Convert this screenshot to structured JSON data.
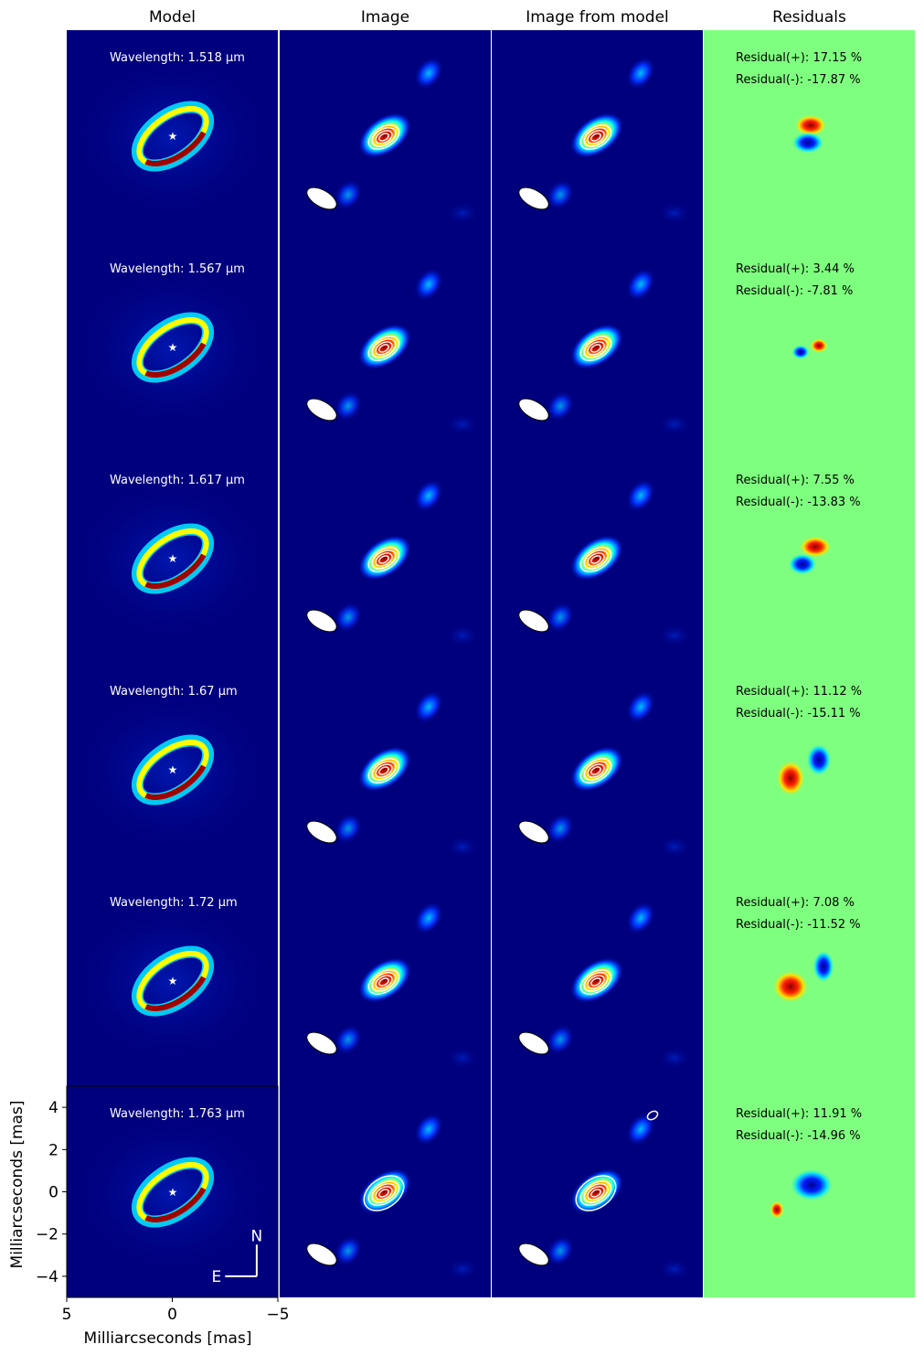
{
  "chart_data": {
    "type": "heatmap",
    "column_titles": [
      "Model",
      "Image",
      "Image from model",
      "Residuals"
    ],
    "xlabel": "Milliarcseconds [mas]",
    "ylabel": "Milliarcseconds [mas]",
    "xlim": [
      5,
      -5
    ],
    "ylim": [
      -5,
      5
    ],
    "xticks": [
      5,
      0,
      -5
    ],
    "xtick_labels": [
      "5",
      "0",
      "−5"
    ],
    "yticks": [
      4,
      2,
      0,
      -2,
      -4
    ],
    "ytick_labels": [
      "4",
      "2",
      "0",
      "−2",
      "−4"
    ],
    "compass": {
      "north": "N",
      "east": "E"
    },
    "colormap": "jet",
    "colors": {
      "background_low": "#00007f",
      "residual_zero": "#7fff7f",
      "contour": "#ffffff"
    },
    "rows": [
      {
        "wavelength": "Wavelength: 1.518 μm",
        "residual_pos": "Residual(+): 17.15 %",
        "residual_neg": "Residual(-): -17.87 %"
      },
      {
        "wavelength": "Wavelength: 1.567 μm",
        "residual_pos": "Residual(+): 3.44 %",
        "residual_neg": "Residual(-): -7.81 %"
      },
      {
        "wavelength": "Wavelength: 1.617 μm",
        "residual_pos": "Residual(+): 7.55 %",
        "residual_neg": "Residual(-): -13.83 %"
      },
      {
        "wavelength": "Wavelength: 1.67 μm",
        "residual_pos": "Residual(+): 11.12 %",
        "residual_neg": "Residual(-): -15.11 %"
      },
      {
        "wavelength": "Wavelength: 1.72 μm",
        "residual_pos": "Residual(+): 7.08 %",
        "residual_neg": "Residual(-): -11.52 %"
      },
      {
        "wavelength": "Wavelength: 1.763 μm",
        "residual_pos": "Residual(+): 11.91 %",
        "residual_neg": "Residual(-): -14.96 %"
      }
    ]
  }
}
